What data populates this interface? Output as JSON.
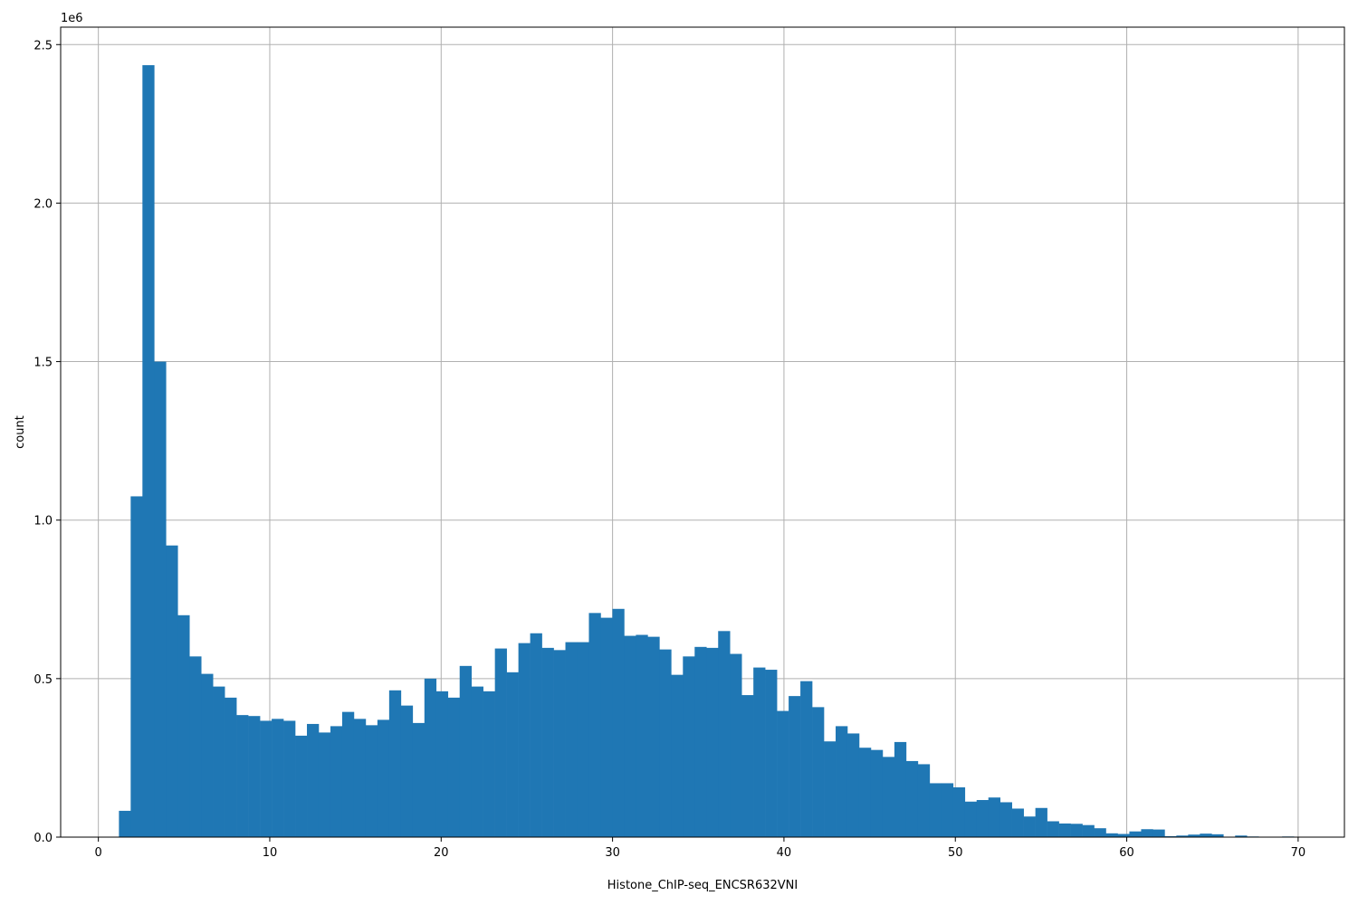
{
  "chart_data": {
    "type": "bar",
    "histogram": true,
    "xlabel": "Histone_ChIP-seq_ENCSR632VNI",
    "ylabel": "count",
    "y_offset_text": "1e6",
    "xlim": [
      -2.2,
      72.7
    ],
    "ylim": [
      0,
      2.555
    ],
    "x_ticks": [
      0,
      10,
      20,
      30,
      40,
      50,
      60,
      70
    ],
    "x_tick_labels": [
      "0",
      "10",
      "20",
      "30",
      "40",
      "50",
      "60",
      "70"
    ],
    "y_ticks": [
      0,
      0.5,
      1.0,
      1.5,
      2.0,
      2.5
    ],
    "y_tick_labels": [
      "0.0",
      "0.5",
      "1.0",
      "1.5",
      "2.0",
      "2.5"
    ],
    "grid": true,
    "bar_color": "#1f77b4",
    "bin_start": 1.2,
    "bin_width": 0.6855,
    "values": [
      0.083,
      1.075,
      2.435,
      1.5,
      0.92,
      0.7,
      0.57,
      0.515,
      0.475,
      0.44,
      0.385,
      0.382,
      0.367,
      0.373,
      0.367,
      0.32,
      0.357,
      0.33,
      0.35,
      0.395,
      0.373,
      0.353,
      0.37,
      0.463,
      0.415,
      0.36,
      0.5,
      0.46,
      0.44,
      0.54,
      0.475,
      0.46,
      0.595,
      0.52,
      0.612,
      0.643,
      0.597,
      0.59,
      0.615,
      0.615,
      0.707,
      0.692,
      0.72,
      0.635,
      0.638,
      0.632,
      0.592,
      0.512,
      0.57,
      0.6,
      0.597,
      0.65,
      0.578,
      0.448,
      0.535,
      0.528,
      0.398,
      0.445,
      0.492,
      0.41,
      0.302,
      0.35,
      0.327,
      0.282,
      0.275,
      0.253,
      0.3,
      0.24,
      0.23,
      0.17,
      0.17,
      0.157,
      0.112,
      0.117,
      0.125,
      0.11,
      0.09,
      0.065,
      0.092,
      0.05,
      0.043,
      0.042,
      0.038,
      0.028,
      0.012,
      0.01,
      0.018,
      0.025,
      0.024,
      0.003,
      0.005,
      0.008,
      0.011,
      0.009,
      0.0,
      0.005,
      0.002,
      0.0,
      0.001,
      0.002
    ]
  }
}
